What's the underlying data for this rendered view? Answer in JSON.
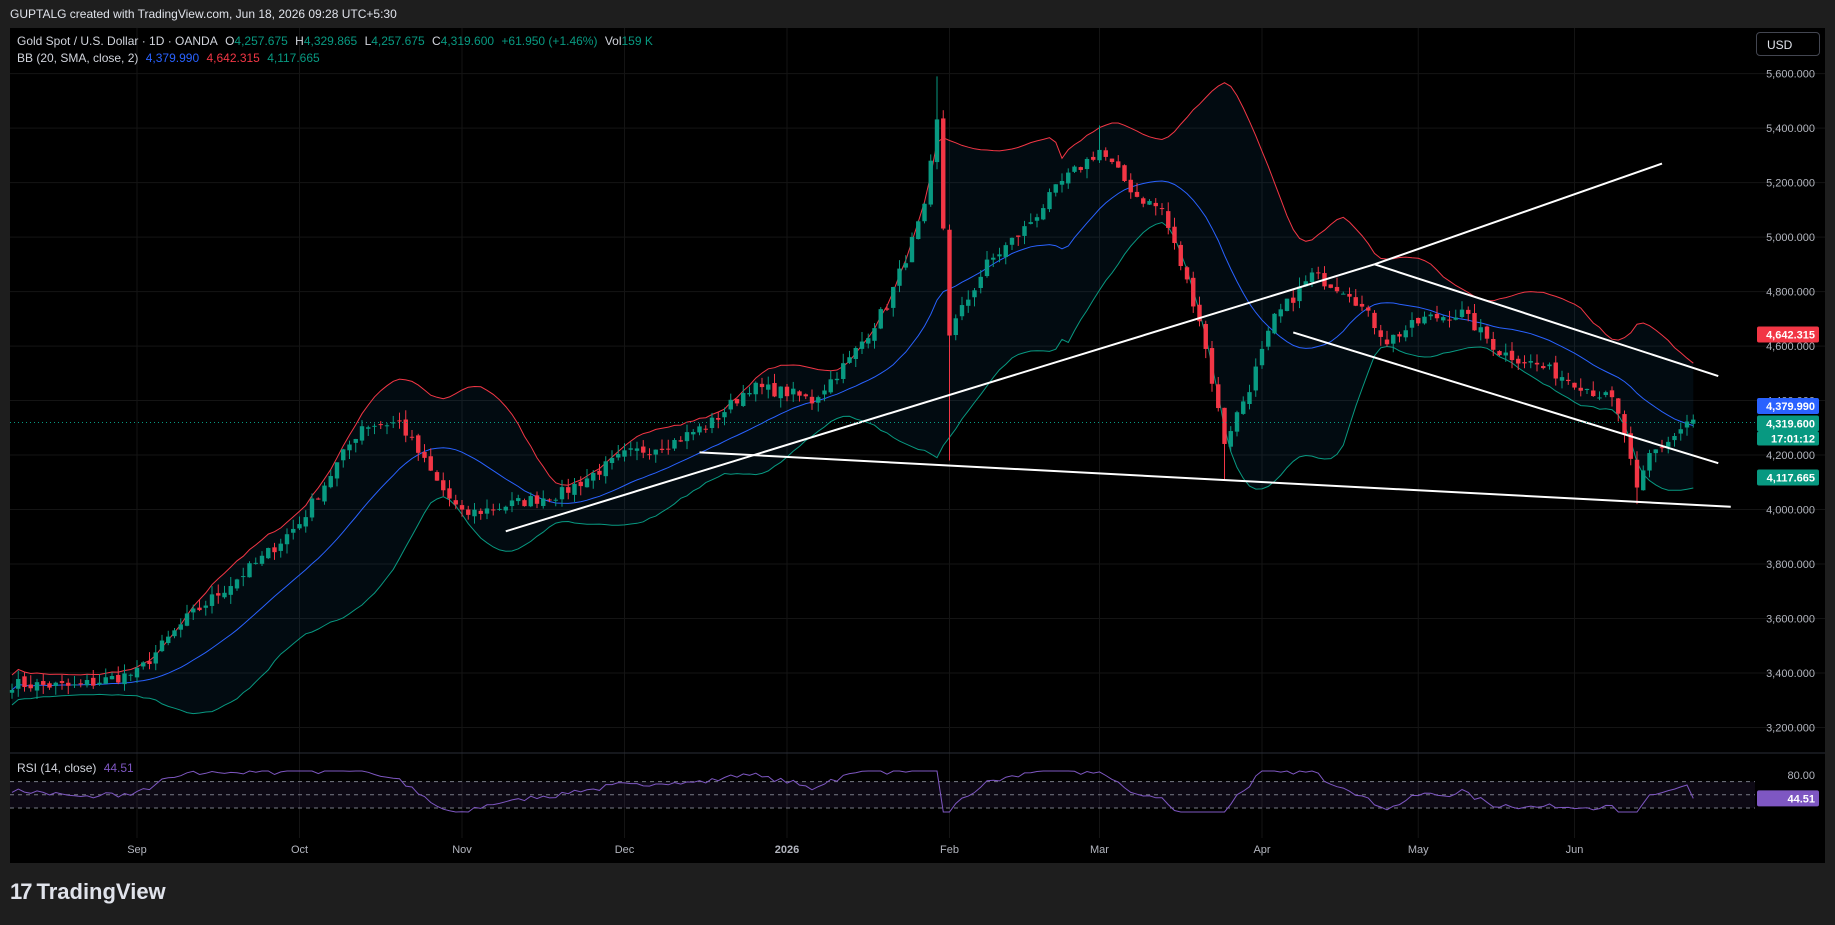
{
  "header": {
    "title": "GUPTALG created with TradingView.com, Jun 18, 2026 09:28 UTC+5:30"
  },
  "currency_button": "USD",
  "legend": {
    "symbol": "Gold Spot / U.S. Dollar · 1D · OANDA",
    "o_label": "O",
    "o_value": "4,257.675",
    "h_label": "H",
    "h_value": "4,329.865",
    "l_label": "L",
    "l_value": "4,257.675",
    "c_label": "C",
    "c_value": "4,319.600",
    "change": "+61.950 (+1.46%)",
    "vol_label": "Vol",
    "vol_value": "159 K",
    "bb_label": "BB (20, SMA, close, 2)",
    "bb_basis": "4,379.990",
    "bb_upper": "4,642.315",
    "bb_lower": "4,117.665",
    "rsi_label": "RSI (14, close)",
    "rsi_value": "44.51"
  },
  "price_tags": {
    "upper": "4,642.315",
    "basis": "4,379.990",
    "last": "4,319.600",
    "countdown": "17:01:12",
    "lower": "4,117.665",
    "rsi": "44.51"
  },
  "colors": {
    "up": "#089981",
    "down": "#f23645",
    "basis": "#2962ff",
    "upper": "#f23645",
    "lower": "#089981",
    "rsi": "#7e57c2",
    "trendline": "#ffffff"
  },
  "brand": "TradingView",
  "chart_data": {
    "type": "candlestick",
    "price_axis": {
      "ticks": [
        3200,
        3400,
        3600,
        3800,
        4000,
        4200,
        4400,
        4600,
        4800,
        5000,
        5200,
        5400,
        5600
      ],
      "tick_labels": [
        "3,200.000",
        "3,400.000",
        "3,600.000",
        "3,800.000",
        "4,000.000",
        "4,200.000",
        "4,400.000",
        "4,600.000",
        "4,800.000",
        "5,000.000",
        "5,200.000",
        "5,400.000",
        "5,600.000"
      ],
      "ylim": [
        3110,
        5650
      ]
    },
    "time_axis": {
      "labels": [
        "Sep",
        "Oct",
        "Nov",
        "Dec",
        "2026",
        "Feb",
        "Mar",
        "Apr",
        "May",
        "Jun"
      ],
      "label_bar_index": [
        20,
        46,
        72,
        98,
        124,
        150,
        174,
        200,
        225,
        250
      ]
    },
    "rsi_axis": {
      "ticks": [
        80
      ],
      "tick_labels": [
        "80.00"
      ],
      "bands": [
        70,
        50,
        30
      ]
    },
    "close_anchors": [
      [
        0,
        3360
      ],
      [
        10,
        3350
      ],
      [
        20,
        3400
      ],
      [
        28,
        3600
      ],
      [
        40,
        3820
      ],
      [
        46,
        3950
      ],
      [
        56,
        4310
      ],
      [
        62,
        4320
      ],
      [
        68,
        4100
      ],
      [
        72,
        3980
      ],
      [
        80,
        4020
      ],
      [
        88,
        4060
      ],
      [
        98,
        4200
      ],
      [
        106,
        4250
      ],
      [
        112,
        4320
      ],
      [
        118,
        4450
      ],
      [
        124,
        4430
      ],
      [
        128,
        4400
      ],
      [
        134,
        4550
      ],
      [
        140,
        4750
      ],
      [
        146,
        5100
      ],
      [
        148,
        5420
      ],
      [
        150,
        4650
      ],
      [
        156,
        4900
      ],
      [
        162,
        5030
      ],
      [
        168,
        5200
      ],
      [
        174,
        5320
      ],
      [
        180,
        5150
      ],
      [
        184,
        5100
      ],
      [
        190,
        4700
      ],
      [
        194,
        4250
      ],
      [
        198,
        4450
      ],
      [
        202,
        4700
      ],
      [
        208,
        4860
      ],
      [
        214,
        4800
      ],
      [
        220,
        4620
      ],
      [
        226,
        4700
      ],
      [
        232,
        4720
      ],
      [
        238,
        4580
      ],
      [
        244,
        4530
      ],
      [
        250,
        4470
      ],
      [
        256,
        4400
      ],
      [
        258,
        4280
      ],
      [
        260,
        4060
      ],
      [
        262,
        4200
      ],
      [
        266,
        4270
      ],
      [
        268,
        4320
      ]
    ],
    "bollinger_bands": {
      "period": 20,
      "stddev": 2
    },
    "rsi": {
      "period": 14,
      "last": 44.51
    },
    "trendlines": [
      {
        "from": [
          79,
          3920
        ],
        "to": [
          218,
          4900
        ]
      },
      {
        "from": [
          218,
          4900
        ],
        "to": [
          264,
          5270
        ]
      },
      {
        "from": [
          110,
          4210
        ],
        "to": [
          275,
          4010
        ]
      },
      {
        "from": [
          218,
          4900
        ],
        "to": [
          273,
          4490
        ]
      },
      {
        "from": [
          205,
          4650
        ],
        "to": [
          273,
          4170
        ]
      }
    ]
  }
}
